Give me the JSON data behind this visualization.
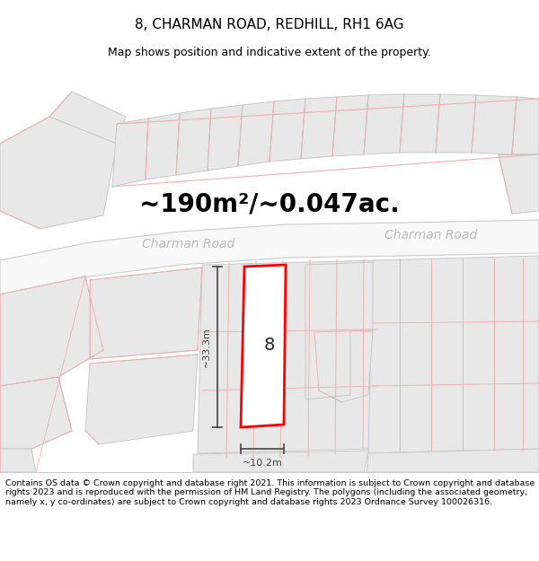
{
  "title": "8, CHARMAN ROAD, REDHILL, RH1 6AG",
  "subtitle": "Map shows position and indicative extent of the property.",
  "area_text": "~190m²/~0.047ac.",
  "road_label1": "Charman Road",
  "road_label2": "Charman Road",
  "property_number": "8",
  "dim_vertical": "~33.3m",
  "dim_horizontal": "~10.2m",
  "footer": "Contains OS data © Crown copyright and database right 2021. This information is subject to Crown copyright and database rights 2023 and is reproduced with the permission of HM Land Registry. The polygons (including the associated geometry, namely x, y co-ordinates) are subject to Crown copyright and database rights 2023 Ordnance Survey 100026316.",
  "bg_color": "#ffffff",
  "building_fill": "#e8e8e8",
  "building_edge": "#c8c8c8",
  "road_fill": "#f0f0f0",
  "highlight_color": "#ff0000",
  "pink_line": "#f0b0b0",
  "dim_color": "#444444",
  "title_fontsize": 11,
  "subtitle_fontsize": 9,
  "area_fontsize": 20,
  "road_fontsize": 10,
  "footer_fontsize": 6.8,
  "prop_num_fontsize": 14
}
